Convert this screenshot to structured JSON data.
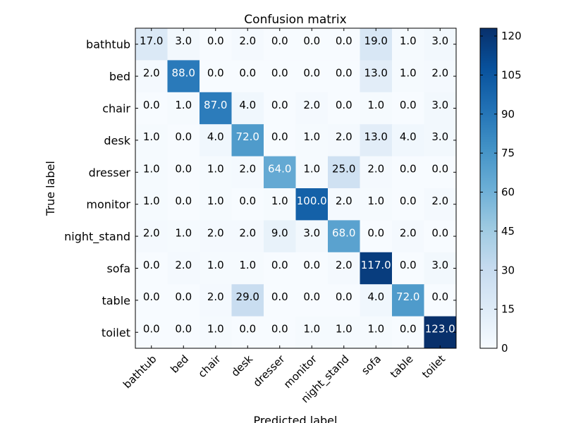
{
  "chart_data": {
    "type": "heatmap",
    "title": "Confusion matrix",
    "xlabel": "Predicted label",
    "ylabel": "True label",
    "x_categories": [
      "bathtub",
      "bed",
      "chair",
      "desk",
      "dresser",
      "monitor",
      "night_stand",
      "sofa",
      "table",
      "toilet"
    ],
    "y_categories": [
      "bathtub",
      "bed",
      "chair",
      "desk",
      "dresser",
      "monitor",
      "night_stand",
      "sofa",
      "table",
      "toilet"
    ],
    "values": [
      [
        17,
        3,
        0,
        2,
        0,
        0,
        0,
        19,
        1,
        3
      ],
      [
        2,
        88,
        0,
        0,
        0,
        0,
        0,
        13,
        1,
        2
      ],
      [
        0,
        1,
        87,
        4,
        0,
        2,
        0,
        1,
        0,
        3
      ],
      [
        1,
        0,
        4,
        72,
        0,
        1,
        2,
        13,
        4,
        3
      ],
      [
        1,
        0,
        1,
        2,
        64,
        1,
        25,
        2,
        0,
        0
      ],
      [
        1,
        0,
        1,
        0,
        1,
        100,
        2,
        1,
        0,
        2
      ],
      [
        2,
        1,
        2,
        2,
        9,
        3,
        68,
        0,
        2,
        0
      ],
      [
        0,
        2,
        1,
        1,
        0,
        0,
        2,
        117,
        0,
        3
      ],
      [
        0,
        0,
        2,
        29,
        0,
        0,
        0,
        4,
        72,
        0
      ],
      [
        0,
        0,
        1,
        0,
        0,
        1,
        1,
        1,
        0,
        123
      ]
    ],
    "value_format_decimals": 1,
    "colormap": "Blues",
    "color_range": [
      0,
      123
    ],
    "colorbar_ticks": [
      0,
      15,
      30,
      45,
      60,
      75,
      90,
      105,
      120
    ],
    "grid": false
  }
}
